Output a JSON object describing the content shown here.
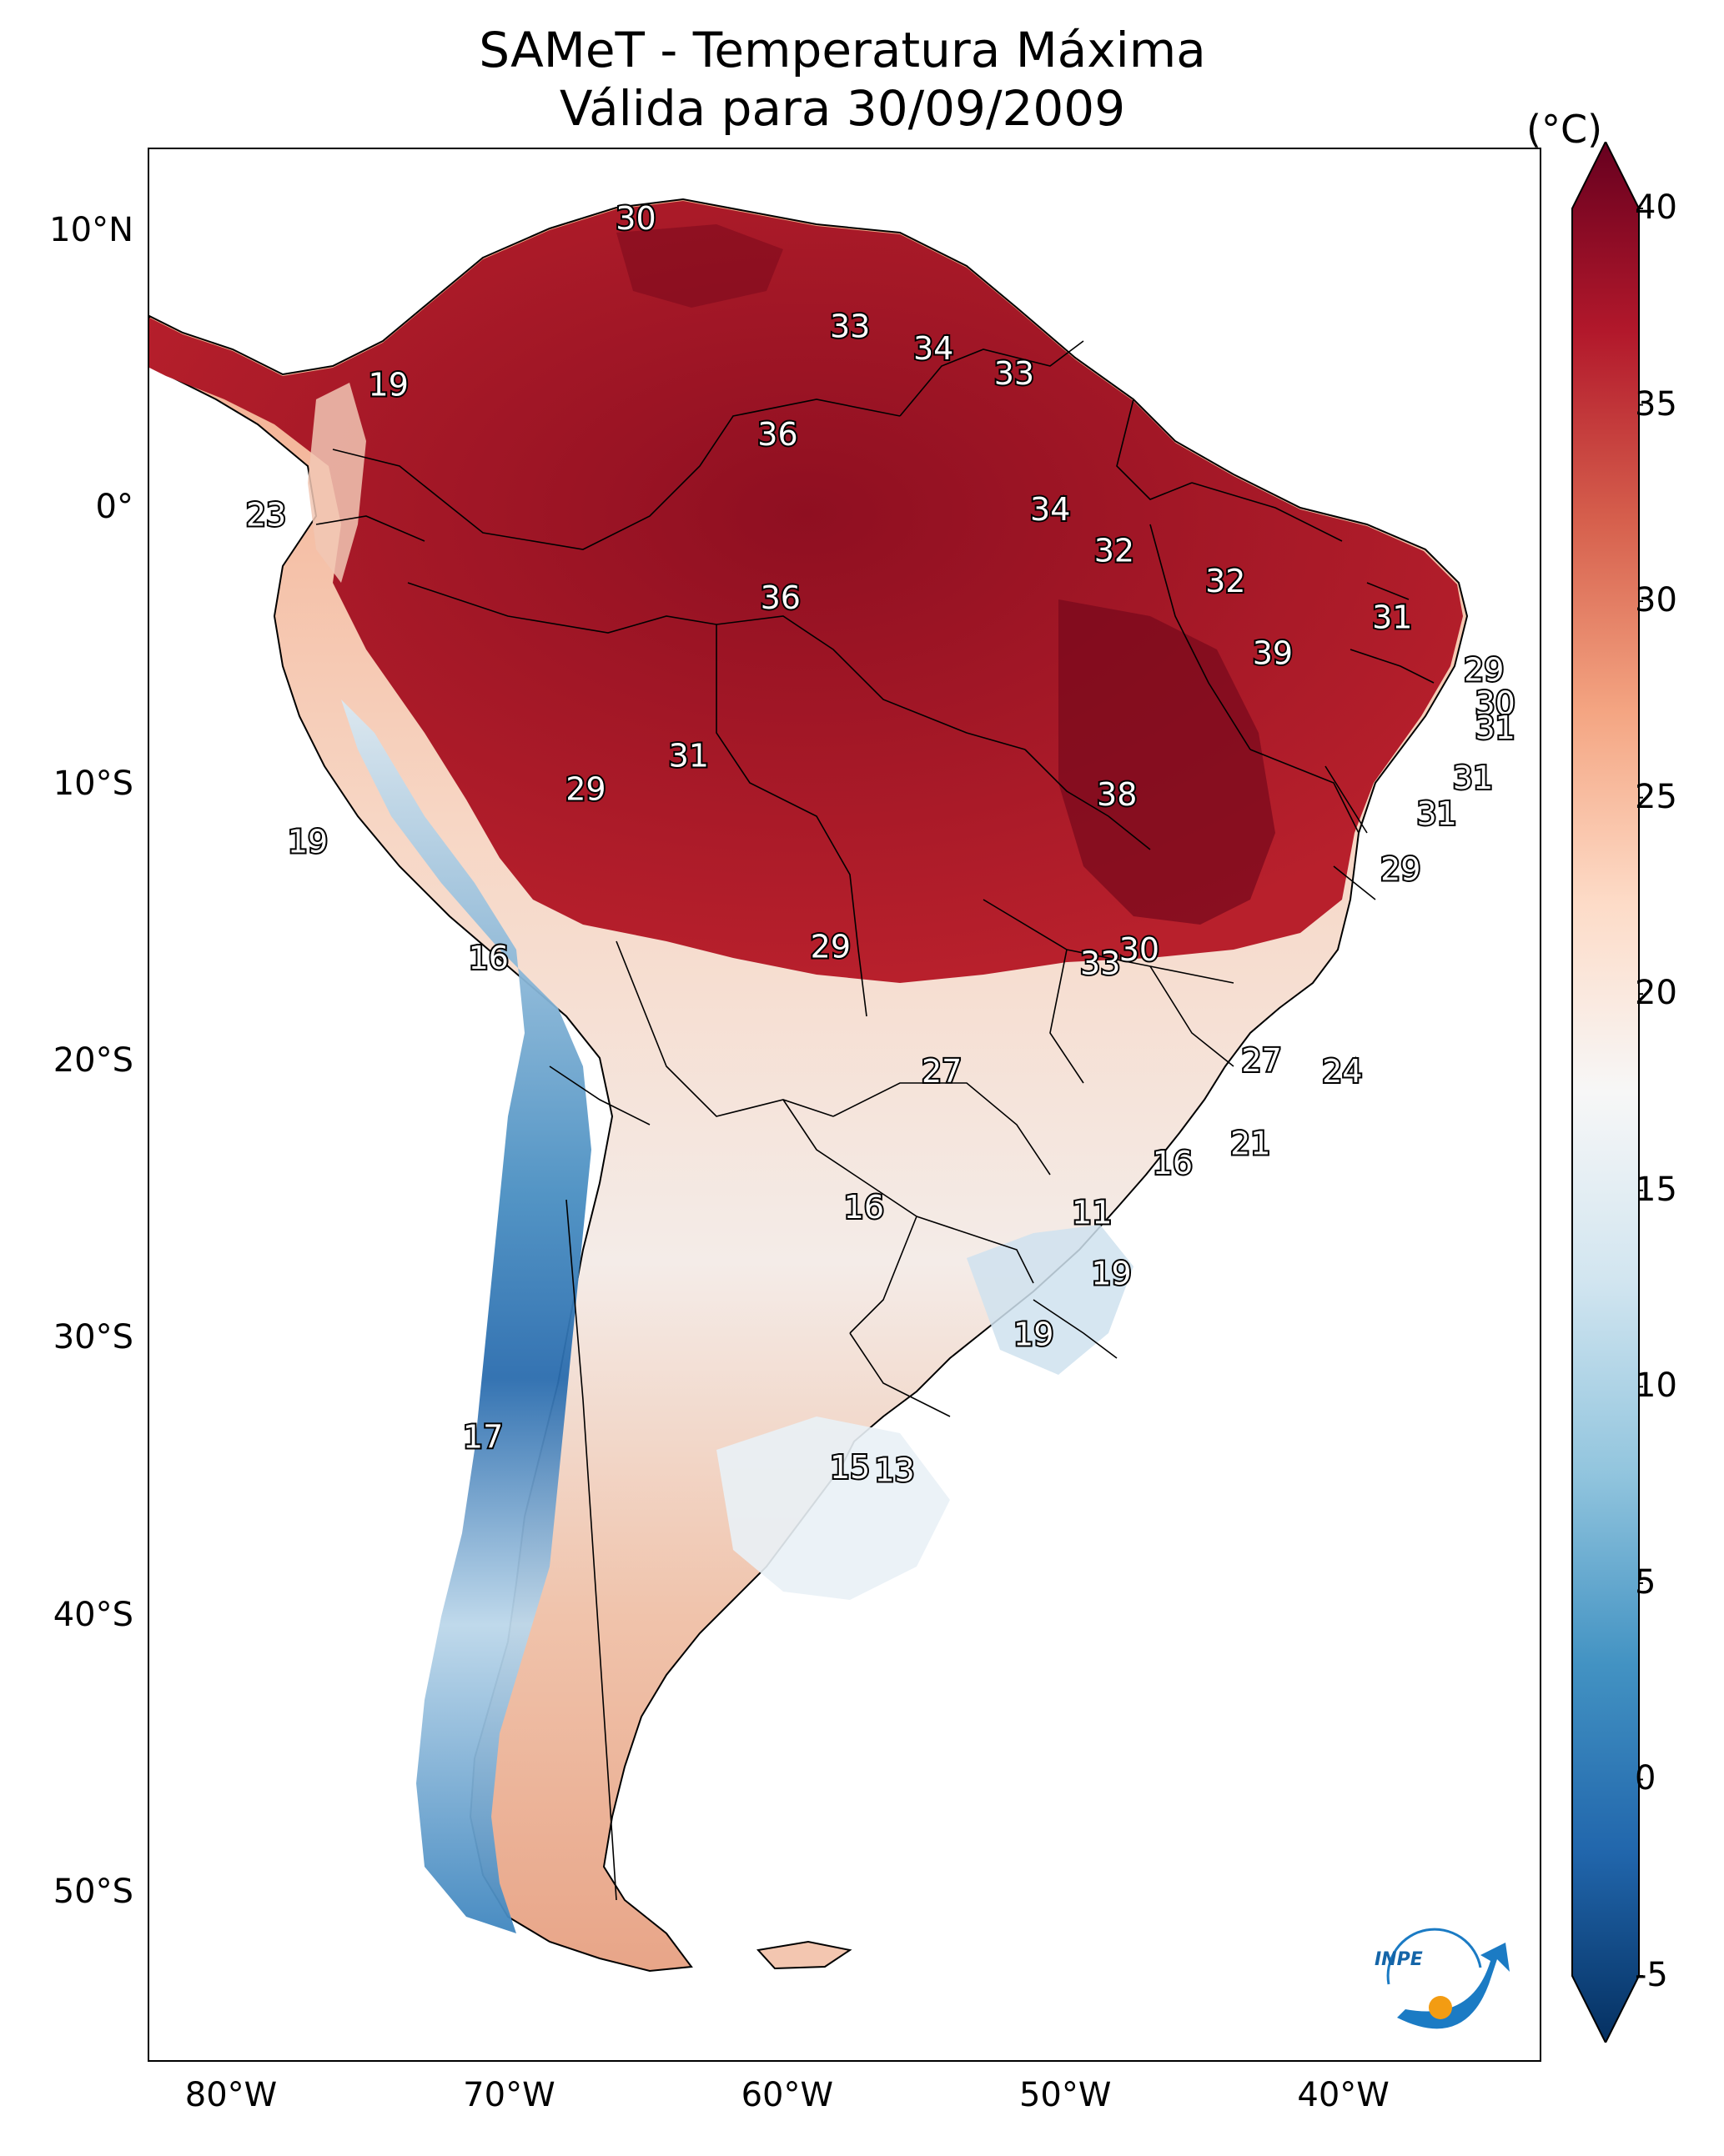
{
  "title": {
    "line1": "SAMeT - Temperatura Máxima",
    "line2": "Válida para 30/09/2009"
  },
  "map": {
    "extent": {
      "lon_min": -83,
      "lon_max": -33,
      "lat_min": -56,
      "lat_max": 13
    },
    "lat_ticks": [
      {
        "value": 10,
        "label": "10°N"
      },
      {
        "value": 0,
        "label": "0°"
      },
      {
        "value": -10,
        "label": "10°S"
      },
      {
        "value": -20,
        "label": "20°S"
      },
      {
        "value": -30,
        "label": "30°S"
      },
      {
        "value": -40,
        "label": "40°S"
      },
      {
        "value": -50,
        "label": "50°S"
      }
    ],
    "lon_ticks": [
      {
        "value": -80,
        "label": "80°W"
      },
      {
        "value": -70,
        "label": "70°W"
      },
      {
        "value": -60,
        "label": "60°W"
      },
      {
        "value": -50,
        "label": "50°W"
      },
      {
        "value": -40,
        "label": "40°W"
      }
    ],
    "contour_labels": [
      {
        "text": "30",
        "lon": -65.5,
        "lat": 10.5
      },
      {
        "text": "33",
        "lon": -57.8,
        "lat": 6.6
      },
      {
        "text": "34",
        "lon": -54.8,
        "lat": 5.8
      },
      {
        "text": "33",
        "lon": -51.9,
        "lat": 4.9
      },
      {
        "text": "19",
        "lon": -74.4,
        "lat": 4.5
      },
      {
        "text": "36",
        "lon": -60.4,
        "lat": 2.7
      },
      {
        "text": "34",
        "lon": -50.6,
        "lat": 0.0
      },
      {
        "text": "23",
        "lon": -78.8,
        "lat": -0.2
      },
      {
        "text": "32",
        "lon": -48.3,
        "lat": -1.5
      },
      {
        "text": "32",
        "lon": -44.3,
        "lat": -2.6
      },
      {
        "text": "36",
        "lon": -60.3,
        "lat": -3.2
      },
      {
        "text": "31",
        "lon": -38.3,
        "lat": -3.9
      },
      {
        "text": "39",
        "lon": -42.6,
        "lat": -5.2
      },
      {
        "text": "29",
        "lon": -35.0,
        "lat": -5.8
      },
      {
        "text": "30",
        "lon": -34.6,
        "lat": -7.0
      },
      {
        "text": "31",
        "lon": -34.6,
        "lat": -7.9
      },
      {
        "text": "31",
        "lon": -63.6,
        "lat": -8.9
      },
      {
        "text": "31",
        "lon": -35.4,
        "lat": -9.7
      },
      {
        "text": "29",
        "lon": -67.3,
        "lat": -10.1
      },
      {
        "text": "38",
        "lon": -48.2,
        "lat": -10.3
      },
      {
        "text": "31",
        "lon": -36.7,
        "lat": -11.0
      },
      {
        "text": "19",
        "lon": -77.3,
        "lat": -12.0
      },
      {
        "text": "29",
        "lon": -38.0,
        "lat": -13.0
      },
      {
        "text": "29",
        "lon": -58.5,
        "lat": -15.8
      },
      {
        "text": "30",
        "lon": -47.4,
        "lat": -15.9
      },
      {
        "text": "33",
        "lon": -48.8,
        "lat": -16.4
      },
      {
        "text": "16",
        "lon": -70.8,
        "lat": -16.2
      },
      {
        "text": "27",
        "lon": -43.0,
        "lat": -19.9
      },
      {
        "text": "27",
        "lon": -54.5,
        "lat": -20.3
      },
      {
        "text": "24",
        "lon": -40.1,
        "lat": -20.3
      },
      {
        "text": "21",
        "lon": -43.4,
        "lat": -22.9
      },
      {
        "text": "16",
        "lon": -46.2,
        "lat": -23.6
      },
      {
        "text": "16",
        "lon": -57.3,
        "lat": -25.2
      },
      {
        "text": "11",
        "lon": -49.1,
        "lat": -25.4
      },
      {
        "text": "19",
        "lon": -48.4,
        "lat": -27.6
      },
      {
        "text": "19",
        "lon": -51.2,
        "lat": -29.8
      },
      {
        "text": "17",
        "lon": -71.0,
        "lat": -33.5
      },
      {
        "text": "15",
        "lon": -57.8,
        "lat": -34.6
      },
      {
        "text": "13",
        "lon": -56.2,
        "lat": -34.7
      }
    ]
  },
  "colorbar": {
    "unit": "(°C)",
    "min": -5,
    "max": 40,
    "ticks": [
      "-5",
      "0",
      "5",
      "10",
      "15",
      "20",
      "25",
      "30",
      "35",
      "40"
    ],
    "colors": [
      "#053061",
      "#2166ac",
      "#4393c3",
      "#92c5de",
      "#d1e5f0",
      "#f7f7f7",
      "#fddbc7",
      "#f4a582",
      "#d6604d",
      "#b2182b",
      "#67001f"
    ]
  },
  "logo": {
    "text": "INPE"
  }
}
